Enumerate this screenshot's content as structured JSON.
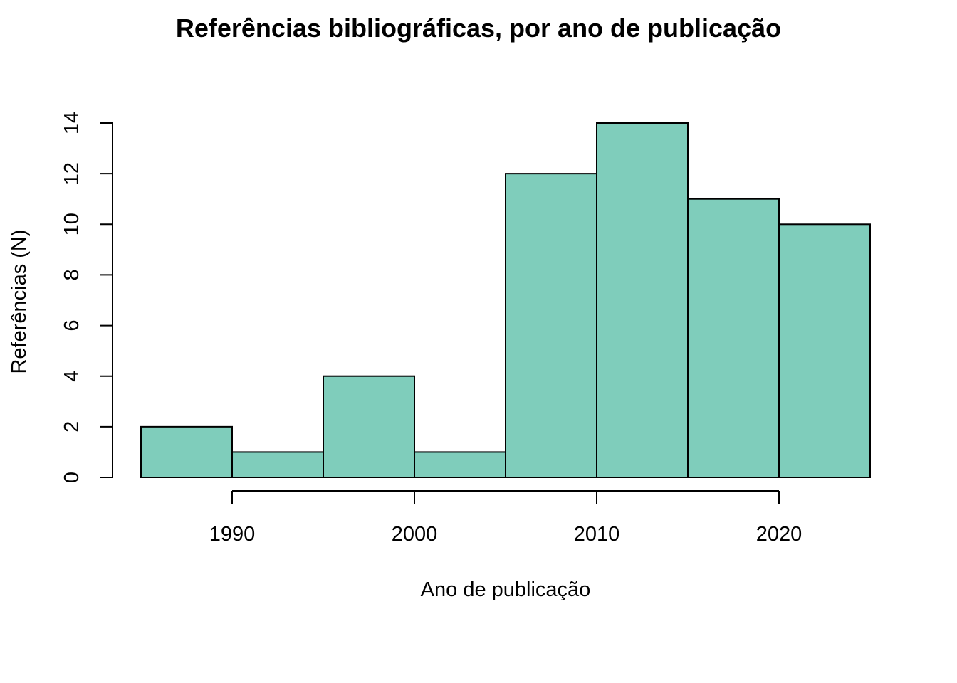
{
  "chart_data": {
    "type": "histogram",
    "title": "Referências bibliográficas, por ano de publicação",
    "xlabel": "Ano de publicação",
    "ylabel": "Referências (N)",
    "bins": [
      {
        "start": 1985,
        "end": 1990,
        "count": 2
      },
      {
        "start": 1990,
        "end": 1995,
        "count": 1
      },
      {
        "start": 1995,
        "end": 2000,
        "count": 4
      },
      {
        "start": 2000,
        "end": 2005,
        "count": 1
      },
      {
        "start": 2005,
        "end": 2010,
        "count": 12
      },
      {
        "start": 2010,
        "end": 2015,
        "count": 14
      },
      {
        "start": 2015,
        "end": 2020,
        "count": 11
      },
      {
        "start": 2020,
        "end": 2025,
        "count": 10
      }
    ],
    "xlim": [
      1985,
      2025
    ],
    "ylim": [
      0,
      14
    ],
    "xticks": [
      "1990",
      "2000",
      "2010",
      "2020"
    ],
    "yticks": [
      "0",
      "2",
      "4",
      "6",
      "8",
      "10",
      "12",
      "14"
    ],
    "bar_color": "#7fcdbb",
    "grid": false
  }
}
